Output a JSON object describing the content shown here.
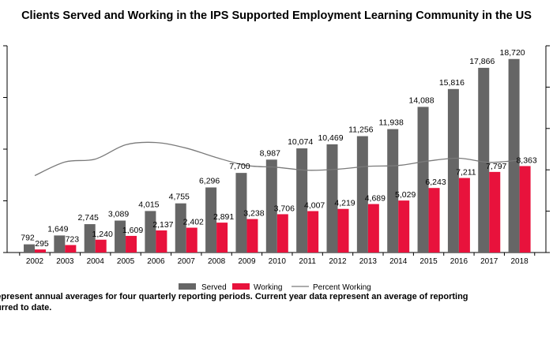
{
  "chart_data": {
    "type": "bar",
    "title": "Clients Served and Working in the IPS Supported Employment Learning Community in the US",
    "xlabel": "",
    "ylabel": "",
    "categories": [
      "2002",
      "2003",
      "2004",
      "2005",
      "2006",
      "2007",
      "2008",
      "2009",
      "2010",
      "2011",
      "2012",
      "2013",
      "2014",
      "2015",
      "2016",
      "2017",
      "2018"
    ],
    "series": [
      {
        "name": "Served",
        "kind": "bar",
        "color": "#666666",
        "values": [
          792,
          1649,
          2745,
          3089,
          4015,
          4755,
          6296,
          7700,
          8987,
          10074,
          10469,
          11256,
          11938,
          14088,
          15816,
          17866,
          18720
        ],
        "labels": [
          "792",
          "1,649",
          "2,745",
          "3,089",
          "4,015",
          "4,755",
          "6,296",
          "7,700",
          "8,987",
          "10,074",
          "10,469",
          "11,256",
          "11,938",
          "14,088",
          "15,816",
          "17,866",
          "18,720"
        ]
      },
      {
        "name": "Working",
        "kind": "bar",
        "color": "#e8123c",
        "values": [
          295,
          723,
          1240,
          1609,
          2137,
          2402,
          2891,
          3238,
          3706,
          4007,
          4219,
          4689,
          5029,
          6243,
          7211,
          7797,
          8363
        ],
        "labels": [
          "295",
          "723",
          "1,240",
          "1,609",
          "2,137",
          "2,402",
          "2,891",
          "3,238",
          "3,706",
          "4,007",
          "4,219",
          "4,689",
          "5,029",
          "6,243",
          "7,211",
          "7,797",
          "8,363"
        ]
      },
      {
        "name": "Percent Working",
        "kind": "line",
        "color": "#7a7a7a",
        "values": [
          37.2,
          43.8,
          45.2,
          52.1,
          53.2,
          50.5,
          45.9,
          42.1,
          41.2,
          39.8,
          40.3,
          41.7,
          42.1,
          44.3,
          45.6,
          43.6,
          44.7
        ]
      }
    ],
    "ylim": [
      0,
      20000
    ],
    "y2lim": [
      0,
      100
    ],
    "legend": "bottom",
    "grid": false
  },
  "footnote": {
    "line1": "represent annual averages for four quarterly reporting periods. Current year data represent an average of reporting",
    "line2": "urred to date."
  }
}
